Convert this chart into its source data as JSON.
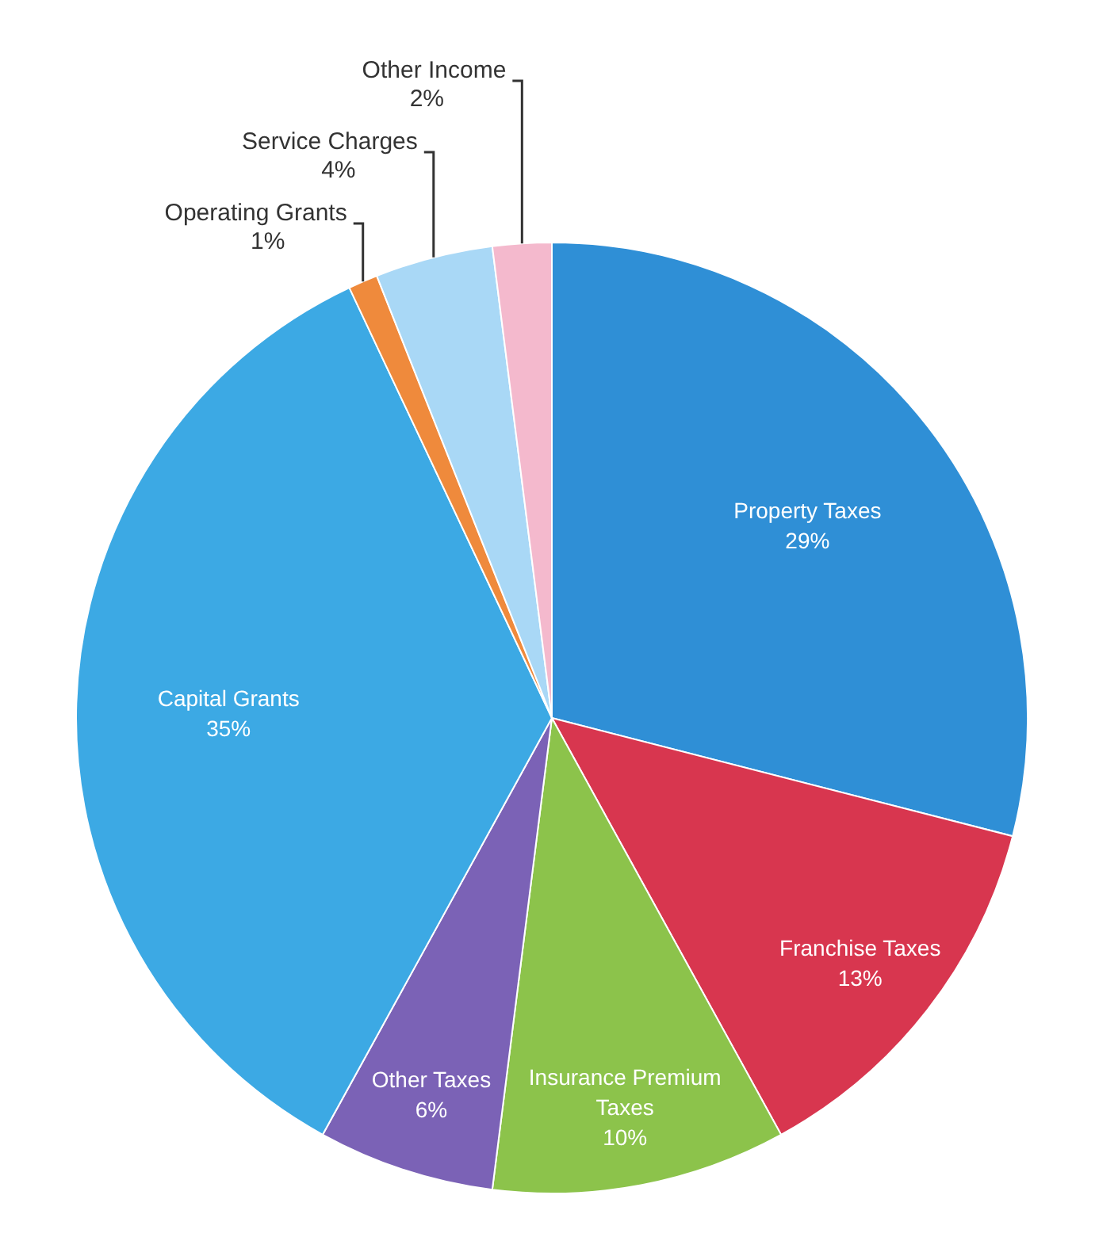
{
  "chart_data": {
    "type": "pie",
    "categories": [
      "Property Taxes",
      "Franchise Taxes",
      "Insurance Premium Taxes",
      "Other Taxes",
      "Capital Grants",
      "Operating Grants",
      "Service Charges",
      "Other Income"
    ],
    "values": [
      29,
      13,
      10,
      6,
      35,
      1,
      4,
      2
    ],
    "colors": [
      "#2f8fd6",
      "#d8364f",
      "#8cc34b",
      "#7b62b6",
      "#3ca9e4",
      "#ef8a3c",
      "#a9d8f6",
      "#f4b9cd"
    ],
    "value_labels": [
      "29%",
      "13%",
      "10%",
      "6%",
      "35%",
      "1%",
      "4%",
      "2%"
    ]
  }
}
